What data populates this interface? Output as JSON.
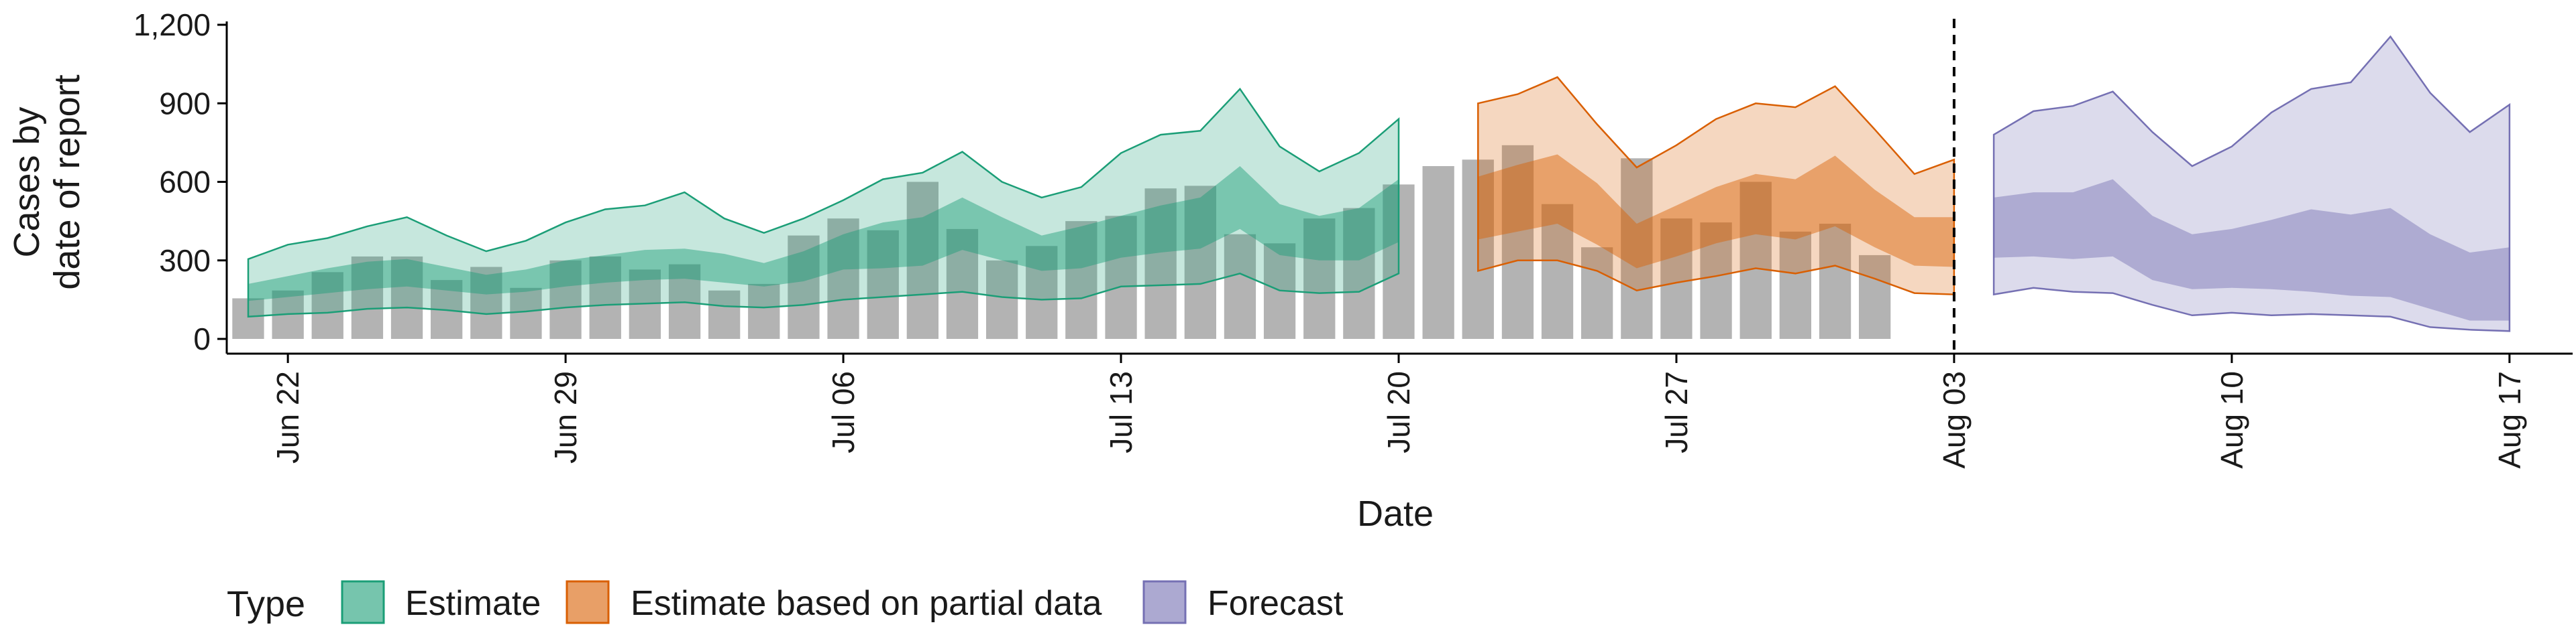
{
  "chart_data": {
    "type": "area",
    "xlabel": "Date",
    "ylabel": [
      "Cases by",
      "date of report"
    ],
    "ylim": [
      0,
      1200
    ],
    "yticks": [
      0,
      300,
      600,
      900,
      1200
    ],
    "ytick_labels": [
      "0",
      "300",
      "600",
      "900",
      "1,200"
    ],
    "xticks": [
      "2020-06-22",
      "2020-06-29",
      "2020-07-06",
      "2020-07-13",
      "2020-07-20",
      "2020-07-27",
      "2020-08-03",
      "2020-08-10",
      "2020-08-17"
    ],
    "xtick_labels": [
      "Jun 22",
      "Jun 29",
      "Jul 06",
      "Jul 13",
      "Jul 20",
      "Jul 27",
      "Aug 03",
      "Aug 10",
      "Aug 17"
    ],
    "xlim": [
      "2020-06-21",
      "2020-08-18"
    ],
    "vline_date": "2020-08-03",
    "grid": false,
    "legend": {
      "title": "Type",
      "position": "bottom",
      "items": [
        {
          "label": "Estimate",
          "fill": "#1b9e77",
          "stroke": "#1b9e77"
        },
        {
          "label": "Estimate based on partial data",
          "fill": "#d95f02",
          "stroke": "#d95f02"
        },
        {
          "label": "Forecast",
          "fill": "#7570b3",
          "stroke": "#7570b3"
        }
      ]
    },
    "bar_color": "#b3b3b3",
    "bars": {
      "start_date": "2020-06-21",
      "values": [
        155,
        185,
        255,
        315,
        315,
        225,
        275,
        195,
        300,
        315,
        265,
        285,
        185,
        210,
        395,
        460,
        415,
        600,
        420,
        300,
        355,
        450,
        470,
        575,
        585,
        400,
        365,
        460,
        500,
        590,
        660,
        685,
        740,
        515,
        350,
        690,
        460,
        445,
        600,
        410,
        440,
        320
      ]
    },
    "series": [
      {
        "name": "Estimate",
        "color": "#1b9e77",
        "start_date": "2020-06-21",
        "outer_upper": [
          305,
          360,
          385,
          430,
          465,
          395,
          335,
          375,
          445,
          495,
          510,
          560,
          460,
          405,
          460,
          530,
          610,
          635,
          715,
          600,
          540,
          580,
          710,
          780,
          795,
          955,
          735,
          640,
          710,
          840
        ],
        "inner_upper": [
          210,
          240,
          270,
          295,
          305,
          275,
          245,
          265,
          300,
          320,
          340,
          345,
          325,
          290,
          335,
          400,
          445,
          465,
          540,
          465,
          395,
          430,
          470,
          510,
          540,
          660,
          515,
          470,
          500,
          610
        ],
        "inner_lower": [
          145,
          160,
          175,
          190,
          200,
          185,
          170,
          180,
          200,
          215,
          225,
          230,
          215,
          200,
          220,
          265,
          270,
          280,
          340,
          300,
          260,
          270,
          310,
          330,
          345,
          420,
          320,
          300,
          300,
          370
        ],
        "outer_lower": [
          85,
          95,
          100,
          115,
          120,
          110,
          95,
          105,
          120,
          130,
          135,
          140,
          125,
          120,
          130,
          150,
          160,
          170,
          180,
          160,
          150,
          155,
          200,
          205,
          210,
          250,
          185,
          175,
          180,
          250
        ]
      },
      {
        "name": "Estimate based on partial data",
        "color": "#d95f02",
        "start_date": "2020-07-22",
        "outer_upper": [
          900,
          935,
          1000,
          820,
          655,
          740,
          840,
          900,
          885,
          965,
          800,
          630,
          685
        ],
        "inner_upper": [
          620,
          665,
          705,
          595,
          440,
          510,
          580,
          630,
          610,
          700,
          570,
          465,
          465
        ],
        "inner_lower": [
          380,
          410,
          440,
          360,
          270,
          315,
          365,
          400,
          380,
          430,
          350,
          280,
          275
        ],
        "outer_lower": [
          260,
          300,
          300,
          260,
          185,
          215,
          240,
          270,
          250,
          280,
          230,
          175,
          170
        ]
      },
      {
        "name": "Forecast",
        "color": "#7570b3",
        "start_date": "2020-08-04",
        "outer_upper": [
          780,
          870,
          890,
          945,
          790,
          660,
          735,
          865,
          955,
          980,
          1155,
          940,
          790,
          895
        ],
        "inner_upper": [
          540,
          560,
          560,
          610,
          470,
          400,
          420,
          455,
          495,
          475,
          500,
          400,
          330,
          350
        ],
        "inner_lower": [
          310,
          315,
          305,
          315,
          225,
          190,
          195,
          190,
          180,
          165,
          160,
          115,
          70,
          70
        ],
        "outer_lower": [
          170,
          195,
          180,
          175,
          130,
          90,
          100,
          90,
          95,
          90,
          85,
          45,
          35,
          30
        ]
      }
    ]
  }
}
